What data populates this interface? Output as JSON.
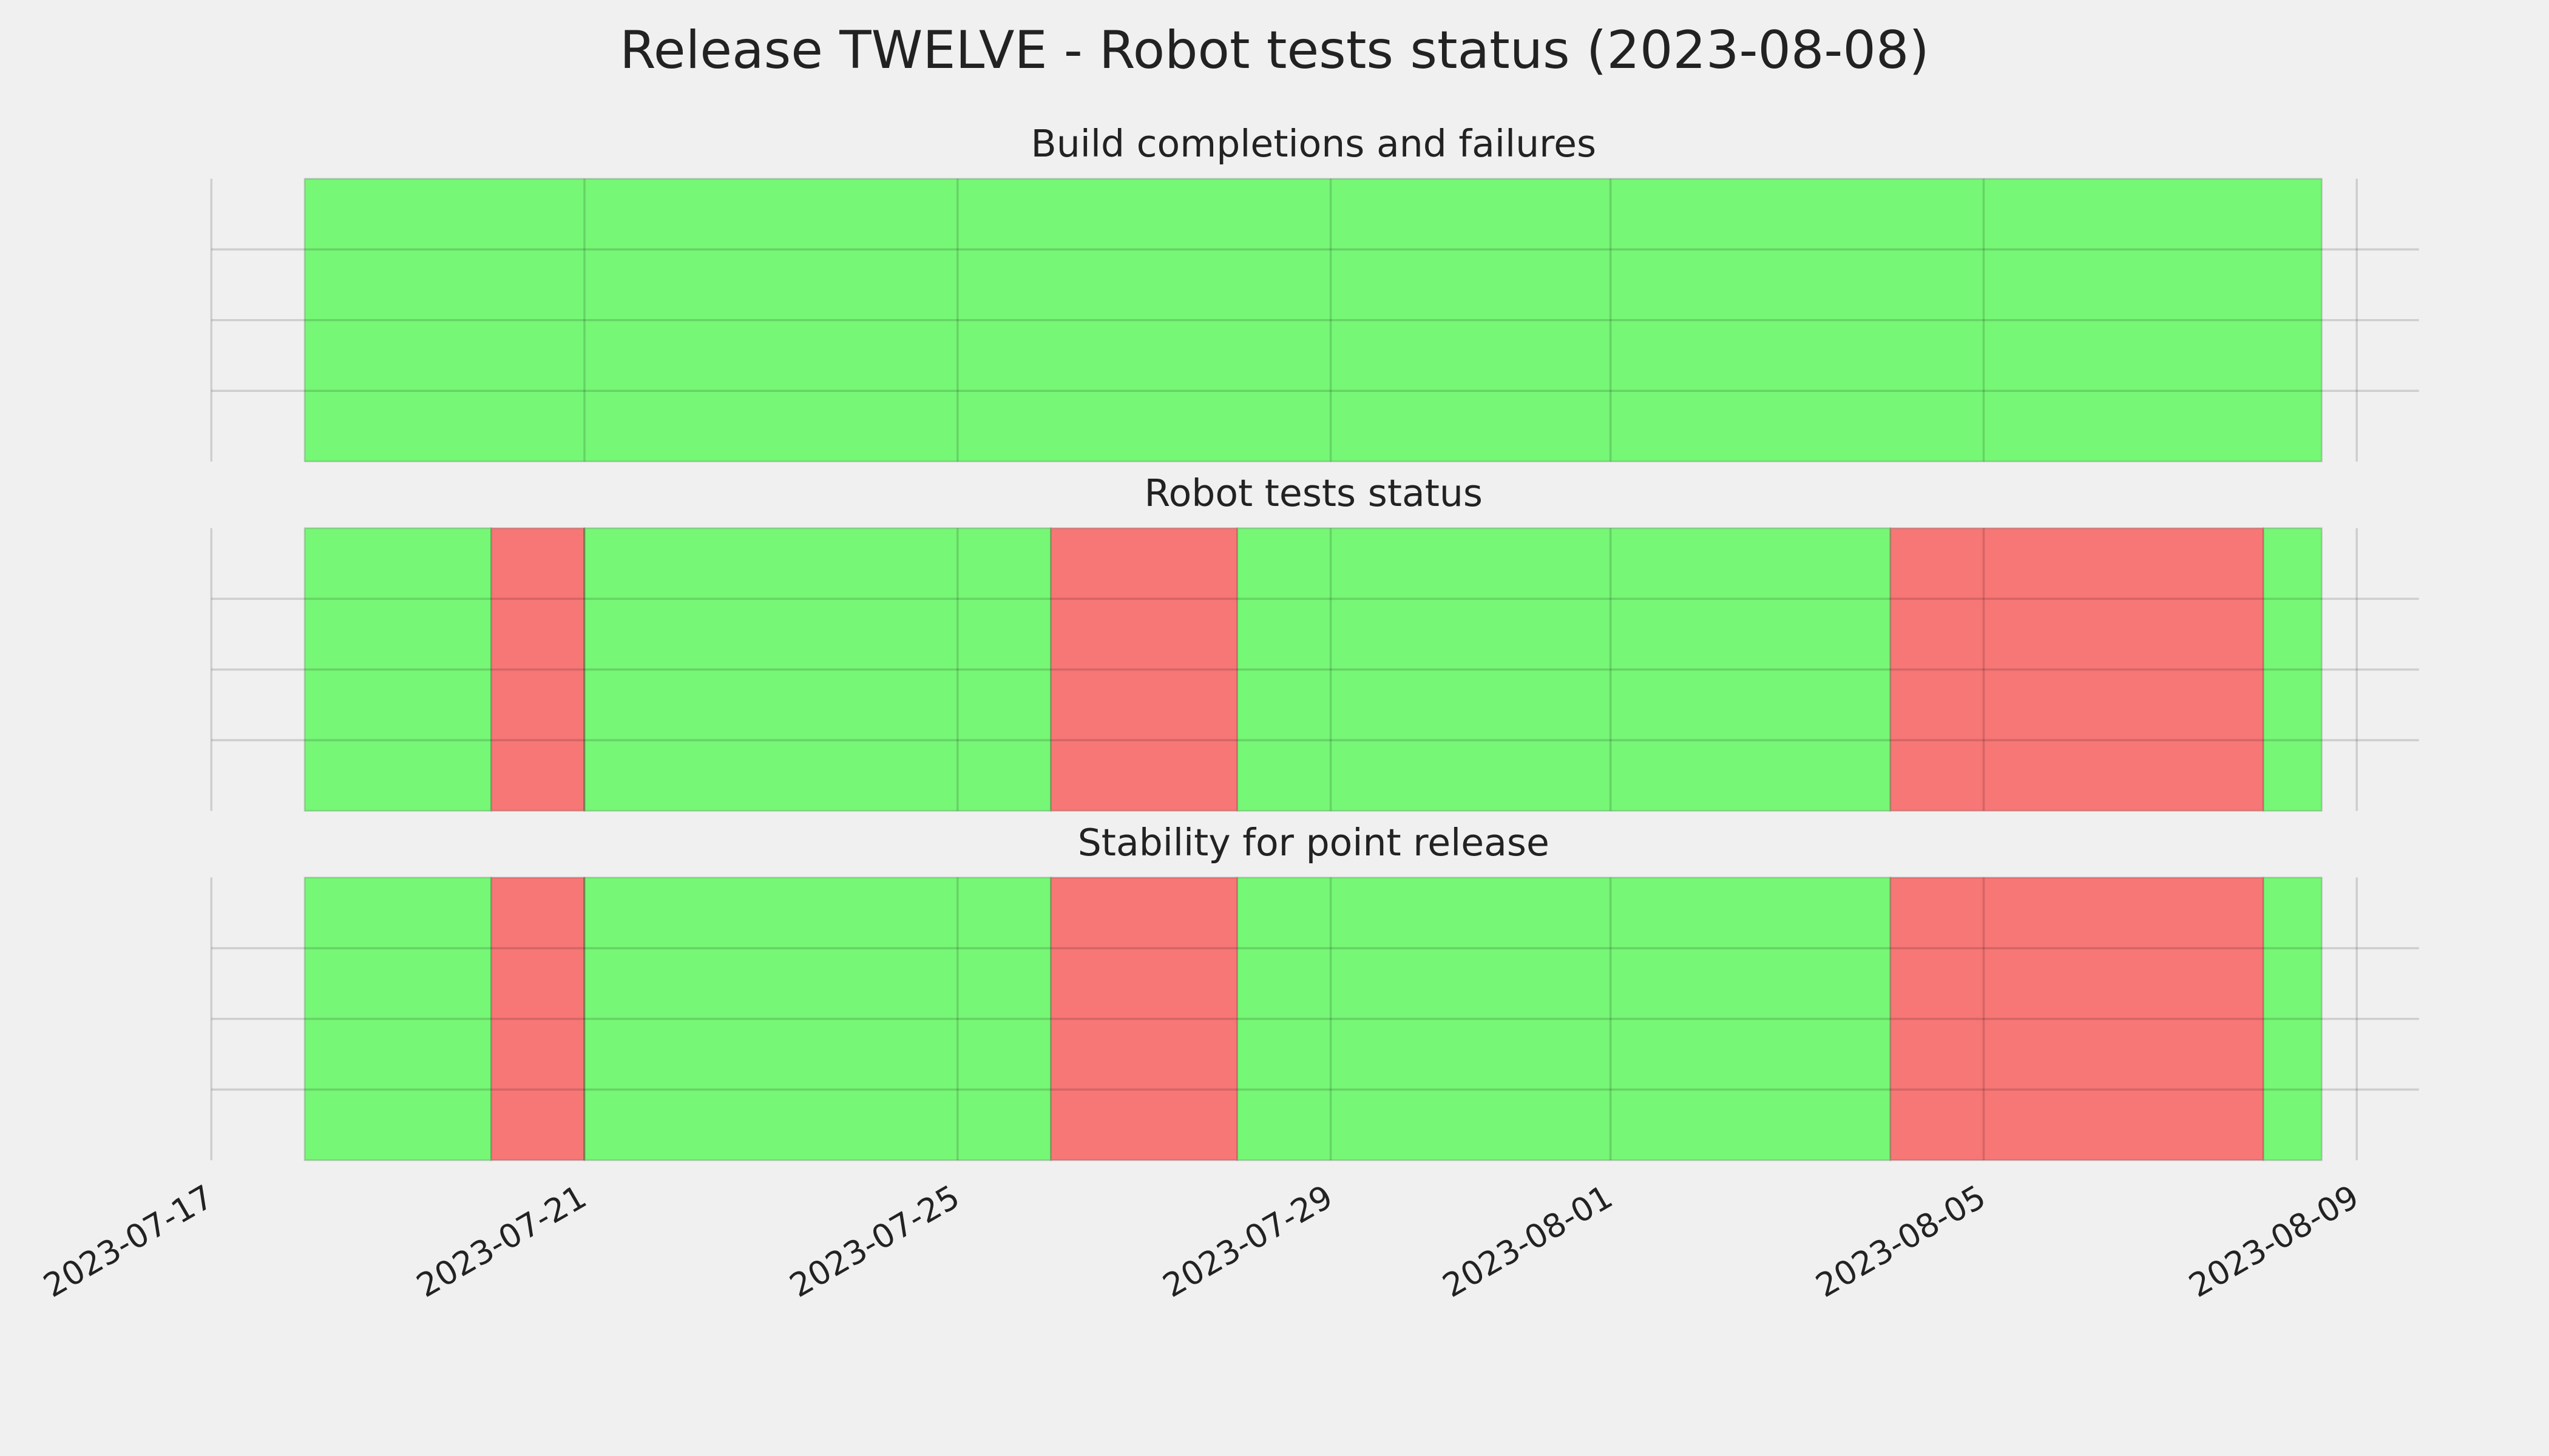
{
  "title": "Release TWELVE - Robot tests status (2023-08-08)",
  "xlim": [
    "2023-07-17",
    "2023-08-09T16:00"
  ],
  "xticks": [
    "2023-07-17",
    "2023-07-21",
    "2023-07-25",
    "2023-07-29",
    "2023-08-01",
    "2023-08-05",
    "2023-08-09"
  ],
  "grid": true,
  "chart_data": [
    {
      "type": "timeline",
      "title": "Build completions and failures",
      "ylim": [
        0,
        1
      ],
      "yticks": [
        0.25,
        0.5,
        0.75
      ],
      "segments": [
        {
          "start": "2023-07-18",
          "end": "2023-08-08T15:00",
          "color": "#76f776"
        }
      ]
    },
    {
      "type": "timeline",
      "title": "Robot tests status",
      "ylim": [
        0,
        1
      ],
      "yticks": [
        0.25,
        0.5,
        0.75
      ],
      "segments": [
        {
          "start": "2023-07-18",
          "end": "2023-07-20",
          "color": "#76f776"
        },
        {
          "start": "2023-07-20",
          "end": "2023-07-21",
          "color": "#f77676"
        },
        {
          "start": "2023-07-21",
          "end": "2023-07-26",
          "color": "#76f776"
        },
        {
          "start": "2023-07-26",
          "end": "2023-07-28",
          "color": "#f77676"
        },
        {
          "start": "2023-07-28",
          "end": "2023-08-04",
          "color": "#76f776"
        },
        {
          "start": "2023-08-04",
          "end": "2023-08-08",
          "color": "#f77676"
        },
        {
          "start": "2023-08-08",
          "end": "2023-08-08T15:00",
          "color": "#76f776"
        }
      ]
    },
    {
      "type": "timeline",
      "title": "Stability for point release",
      "ylim": [
        0,
        1
      ],
      "yticks": [
        0.25,
        0.5,
        0.75
      ],
      "segments": [
        {
          "start": "2023-07-18",
          "end": "2023-07-20",
          "color": "#76f776"
        },
        {
          "start": "2023-07-20",
          "end": "2023-07-21",
          "color": "#f77676"
        },
        {
          "start": "2023-07-21",
          "end": "2023-07-26",
          "color": "#76f776"
        },
        {
          "start": "2023-07-26",
          "end": "2023-07-28",
          "color": "#f77676"
        },
        {
          "start": "2023-07-28",
          "end": "2023-08-04",
          "color": "#76f776"
        },
        {
          "start": "2023-08-04",
          "end": "2023-08-08",
          "color": "#f77676"
        },
        {
          "start": "2023-08-08",
          "end": "2023-08-08T15:00",
          "color": "#76f776"
        }
      ]
    }
  ]
}
